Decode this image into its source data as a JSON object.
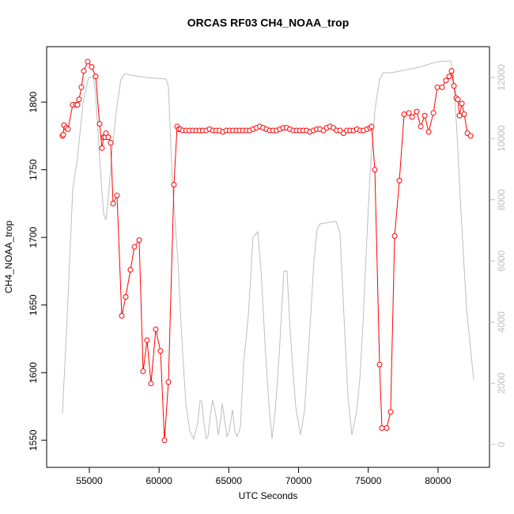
{
  "chart_data": {
    "type": "line",
    "title": "ORCAS RF03 CH4_NOAA_trop",
    "xlabel": "UTC Seconds",
    "ylabel": "CH4_NOAA_trop",
    "xlim": [
      51940,
      83690
    ],
    "ylim": [
      1530,
      1841
    ],
    "y2lim": [
      -750,
      13008
    ],
    "xticks": [
      55000,
      60000,
      65000,
      70000,
      75000,
      80000
    ],
    "yticks": [
      1550,
      1600,
      1650,
      1700,
      1750,
      1800
    ],
    "y2ticks": [
      0,
      2000,
      4000,
      6000,
      8000,
      10000,
      12000
    ],
    "series": [
      {
        "color": "#bebebe",
        "axis": "y2",
        "x": [
          53072,
          53412,
          53809,
          54150,
          54546,
          54943,
          55284,
          55454,
          55737,
          56021,
          56191,
          56361,
          56588,
          56928,
          57268,
          57552,
          57948,
          59082,
          60500,
          60670,
          60954,
          61350,
          61634,
          61918,
          62201,
          62484,
          62768,
          62938,
          63051,
          63222,
          63392,
          63505,
          63675,
          63845,
          64072,
          64242,
          64412,
          64526,
          64696,
          64866,
          65036,
          65263,
          65433,
          65603,
          65830,
          66057,
          66397,
          66737,
          67077,
          67304,
          67644,
          67871,
          68098,
          68325,
          68608,
          68948,
          69175,
          69402,
          69799,
          70139,
          70422,
          70763,
          71103,
          71330,
          71556,
          72690,
          72974,
          73257,
          73541,
          73824,
          74165,
          74391,
          74618,
          74902,
          75129,
          75469,
          75810,
          76092,
          76659,
          78644,
          79948,
          80912,
          81082,
          81366,
          81650,
          82046,
          82556
        ],
        "values": [
          1009,
          4189,
          8327,
          9361,
          11172,
          11999,
          12025,
          11430,
          9361,
          7551,
          7344,
          8068,
          9361,
          10913,
          11947,
          12128,
          12077,
          11999,
          11947,
          11689,
          8586,
          6000,
          3414,
          1345,
          440,
          181,
          698,
          1422,
          1422,
          698,
          181,
          259,
          957,
          1448,
          957,
          310,
          776,
          1345,
          828,
          259,
          440,
          1138,
          440,
          259,
          569,
          2638,
          4189,
          6775,
          6956,
          5741,
          2896,
          1345,
          181,
          1086,
          2896,
          5663,
          5663,
          3672,
          1215,
          310,
          1086,
          3414,
          6000,
          7034,
          7215,
          7293,
          6905,
          4189,
          1603,
          310,
          1086,
          2120,
          3931,
          6775,
          8844,
          10913,
          11947,
          12154,
          12154,
          12335,
          12516,
          12542,
          12206,
          10137,
          7551,
          4448,
          2120
        ]
      },
      {
        "color": "#ff0000",
        "marker": "circle",
        "x": [
          53072,
          53129,
          53186,
          53356,
          53469,
          53809,
          54036,
          54150,
          54263,
          54433,
          54603,
          54887,
          55170,
          55454,
          55737,
          55907,
          56021,
          56134,
          56191,
          56361,
          56531,
          56701,
          56985,
          57325,
          57608,
          57948,
          58232,
          58572,
          58856,
          59139,
          59423,
          59763,
          60103,
          60387,
          60670,
          61067,
          61294,
          61407,
          61521,
          61700,
          61940,
          62180,
          62420,
          62660,
          62900,
          63140,
          63380,
          63620,
          63860,
          64100,
          64340,
          64580,
          64820,
          65060,
          65300,
          65540,
          65780,
          66020,
          66260,
          66500,
          66740,
          66980,
          67220,
          67460,
          67700,
          67940,
          68180,
          68420,
          68660,
          68900,
          69140,
          69380,
          69620,
          69860,
          70100,
          70340,
          70580,
          70820,
          71060,
          71300,
          71540,
          71780,
          72020,
          72260,
          72500,
          72740,
          72980,
          73220,
          73460,
          73700,
          73940,
          74180,
          74420,
          74660,
          74900,
          75130,
          75240,
          75470,
          75810,
          75980,
          76320,
          76600,
          76890,
          77230,
          77570,
          77910,
          78140,
          78480,
          78760,
          79050,
          79330,
          79670,
          79950,
          80290,
          80570,
          80800,
          80970,
          81140,
          81310,
          81420,
          81540,
          81710,
          81880,
          82110,
          82340
        ],
        "values": [
          1775,
          1776,
          1783,
          1781,
          1780,
          1798,
          1798,
          1798,
          1802,
          1811,
          1823,
          1830,
          1826,
          1819,
          1784,
          1766,
          1774,
          1774,
          1777,
          1774,
          1770,
          1725,
          1731,
          1642,
          1656,
          1676,
          1693,
          1698,
          1601,
          1624,
          1592,
          1632,
          1616,
          1550,
          1593,
          1739,
          1782,
          1780,
          1780,
          1779,
          1779,
          1779,
          1779,
          1779,
          1779,
          1779,
          1779,
          1780,
          1779,
          1779,
          1779,
          1778,
          1779,
          1779,
          1779,
          1779,
          1779,
          1779,
          1779,
          1779,
          1780,
          1781,
          1782,
          1781,
          1780,
          1779,
          1779,
          1779,
          1780,
          1781,
          1781,
          1780,
          1779,
          1779,
          1779,
          1779,
          1779,
          1778,
          1779,
          1780,
          1780,
          1779,
          1781,
          1782,
          1781,
          1779,
          1779,
          1777,
          1779,
          1779,
          1779,
          1780,
          1779,
          1779,
          1780,
          1781,
          1782,
          1750,
          1606,
          1559,
          1559,
          1571,
          1701,
          1742,
          1791,
          1792,
          1789,
          1793,
          1782,
          1790,
          1778,
          1792,
          1811,
          1811,
          1816,
          1819,
          1823,
          1812,
          1803,
          1802,
          1790,
          1799,
          1791,
          1777,
          1775
        ]
      }
    ]
  }
}
